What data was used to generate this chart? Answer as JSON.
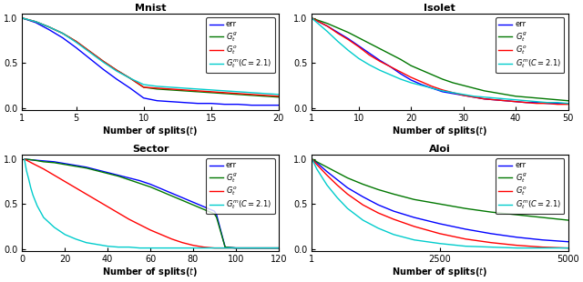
{
  "panels": [
    {
      "title": "Mnist",
      "xlabel": "Number of splits($t$)",
      "xmin": 1,
      "xmax": 20,
      "xticks": [
        1,
        5,
        10,
        15,
        20
      ],
      "curves": {
        "err": {
          "color": "#0000ff",
          "x": [
            1,
            2,
            3,
            4,
            5,
            6,
            7,
            8,
            9,
            10,
            11,
            12,
            13,
            14,
            15,
            16,
            17,
            18,
            19,
            20
          ],
          "y": [
            1.0,
            0.95,
            0.87,
            0.78,
            0.67,
            0.55,
            0.43,
            0.32,
            0.22,
            0.11,
            0.08,
            0.07,
            0.06,
            0.05,
            0.05,
            0.04,
            0.04,
            0.03,
            0.03,
            0.03
          ]
        },
        "Gs": {
          "color": "#007700",
          "x": [
            1,
            2,
            3,
            4,
            5,
            6,
            7,
            8,
            9,
            10,
            11,
            12,
            13,
            14,
            15,
            16,
            17,
            18,
            19,
            20
          ],
          "y": [
            1.0,
            0.96,
            0.9,
            0.83,
            0.74,
            0.63,
            0.52,
            0.42,
            0.33,
            0.23,
            0.21,
            0.2,
            0.19,
            0.18,
            0.17,
            0.16,
            0.15,
            0.14,
            0.13,
            0.12
          ]
        },
        "Go": {
          "color": "#ff0000",
          "x": [
            1,
            2,
            3,
            4,
            5,
            6,
            7,
            8,
            9,
            10,
            11,
            12,
            13,
            14,
            15,
            16,
            17,
            18,
            19,
            20
          ],
          "y": [
            1.0,
            0.96,
            0.9,
            0.83,
            0.74,
            0.63,
            0.52,
            0.42,
            0.33,
            0.23,
            0.22,
            0.21,
            0.2,
            0.19,
            0.18,
            0.17,
            0.16,
            0.15,
            0.14,
            0.13
          ]
        },
        "Gm": {
          "color": "#00cccc",
          "x": [
            1,
            2,
            3,
            4,
            5,
            6,
            7,
            8,
            9,
            10,
            11,
            12,
            13,
            14,
            15,
            16,
            17,
            18,
            19,
            20
          ],
          "y": [
            1.0,
            0.96,
            0.9,
            0.83,
            0.73,
            0.62,
            0.51,
            0.41,
            0.33,
            0.26,
            0.24,
            0.23,
            0.22,
            0.21,
            0.2,
            0.19,
            0.18,
            0.17,
            0.16,
            0.15
          ]
        }
      }
    },
    {
      "title": "Isolet",
      "xlabel": "Number of splits($t$)",
      "xmin": 1,
      "xmax": 50,
      "xticks": [
        1,
        10,
        20,
        30,
        40,
        50
      ],
      "curves": {
        "err": {
          "color": "#0000ff",
          "x": [
            1,
            2,
            4,
            6,
            8,
            10,
            12,
            14,
            16,
            18,
            20,
            22,
            24,
            26,
            28,
            30,
            32,
            34,
            36,
            38,
            40,
            42,
            44,
            46,
            48,
            50
          ],
          "y": [
            1.0,
            0.97,
            0.91,
            0.84,
            0.77,
            0.69,
            0.61,
            0.53,
            0.46,
            0.38,
            0.31,
            0.26,
            0.22,
            0.18,
            0.16,
            0.14,
            0.12,
            0.1,
            0.09,
            0.08,
            0.07,
            0.06,
            0.06,
            0.05,
            0.05,
            0.05
          ]
        },
        "Gs": {
          "color": "#007700",
          "x": [
            1,
            2,
            4,
            6,
            8,
            10,
            12,
            14,
            16,
            18,
            20,
            22,
            24,
            26,
            28,
            30,
            32,
            34,
            36,
            38,
            40,
            42,
            44,
            46,
            48,
            50
          ],
          "y": [
            1.0,
            0.98,
            0.94,
            0.89,
            0.84,
            0.78,
            0.72,
            0.66,
            0.6,
            0.54,
            0.47,
            0.42,
            0.37,
            0.32,
            0.28,
            0.25,
            0.22,
            0.19,
            0.17,
            0.15,
            0.13,
            0.12,
            0.11,
            0.1,
            0.09,
            0.08
          ]
        },
        "Go": {
          "color": "#ff0000",
          "x": [
            1,
            2,
            4,
            6,
            8,
            10,
            12,
            14,
            16,
            18,
            20,
            22,
            24,
            26,
            28,
            30,
            32,
            34,
            36,
            38,
            40,
            42,
            44,
            46,
            48,
            50
          ],
          "y": [
            1.0,
            0.97,
            0.91,
            0.83,
            0.76,
            0.68,
            0.59,
            0.52,
            0.46,
            0.4,
            0.34,
            0.29,
            0.24,
            0.2,
            0.17,
            0.14,
            0.12,
            0.1,
            0.09,
            0.08,
            0.07,
            0.06,
            0.05,
            0.05,
            0.04,
            0.04
          ]
        },
        "Gm": {
          "color": "#00cccc",
          "x": [
            1,
            2,
            4,
            6,
            8,
            10,
            12,
            14,
            16,
            18,
            20,
            22,
            24,
            26,
            28,
            30,
            32,
            34,
            36,
            38,
            40,
            42,
            44,
            46,
            48,
            50
          ],
          "y": [
            1.0,
            0.95,
            0.85,
            0.74,
            0.64,
            0.55,
            0.48,
            0.42,
            0.37,
            0.32,
            0.28,
            0.25,
            0.22,
            0.19,
            0.17,
            0.15,
            0.13,
            0.12,
            0.11,
            0.1,
            0.09,
            0.08,
            0.07,
            0.06,
            0.06,
            0.05
          ]
        }
      }
    },
    {
      "title": "Sector",
      "xlabel": "Number of splits($t$)",
      "xmin": 0,
      "xmax": 120,
      "xticks": [
        0,
        20,
        40,
        60,
        80,
        100,
        120
      ],
      "curves": {
        "err": {
          "color": "#0000ff",
          "x": [
            1,
            5,
            10,
            15,
            20,
            25,
            30,
            35,
            40,
            45,
            50,
            55,
            60,
            65,
            70,
            75,
            80,
            85,
            90,
            91,
            95,
            100,
            105,
            110,
            115,
            120
          ],
          "y": [
            1.0,
            0.99,
            0.98,
            0.97,
            0.95,
            0.93,
            0.91,
            0.88,
            0.85,
            0.82,
            0.79,
            0.76,
            0.72,
            0.67,
            0.62,
            0.57,
            0.52,
            0.47,
            0.42,
            0.38,
            0.02,
            0.01,
            0.01,
            0.01,
            0.01,
            0.01
          ]
        },
        "Gs": {
          "color": "#007700",
          "x": [
            1,
            5,
            10,
            15,
            20,
            25,
            30,
            35,
            40,
            45,
            50,
            55,
            60,
            65,
            70,
            75,
            80,
            85,
            90,
            91,
            95,
            100,
            105,
            110,
            115,
            120
          ],
          "y": [
            1.0,
            0.99,
            0.97,
            0.96,
            0.94,
            0.92,
            0.9,
            0.87,
            0.84,
            0.81,
            0.77,
            0.73,
            0.69,
            0.64,
            0.59,
            0.54,
            0.49,
            0.44,
            0.39,
            0.35,
            0.02,
            0.01,
            0.01,
            0.01,
            0.01,
            0.01
          ]
        },
        "Go": {
          "color": "#ff0000",
          "x": [
            1,
            5,
            10,
            15,
            20,
            25,
            30,
            35,
            40,
            45,
            50,
            55,
            60,
            65,
            70,
            75,
            80,
            85,
            90,
            95,
            100,
            105,
            110,
            115,
            120
          ],
          "y": [
            1.0,
            0.95,
            0.89,
            0.82,
            0.75,
            0.68,
            0.61,
            0.54,
            0.47,
            0.4,
            0.33,
            0.27,
            0.21,
            0.16,
            0.11,
            0.07,
            0.04,
            0.02,
            0.01,
            0.01,
            0.01,
            0.01,
            0.01,
            0.01,
            0.01
          ]
        },
        "Gm": {
          "color": "#00cccc",
          "x": [
            1,
            2,
            3,
            4,
            5,
            7,
            10,
            15,
            20,
            25,
            30,
            35,
            40,
            45,
            50,
            55,
            60,
            65,
            70,
            75,
            80,
            85,
            90,
            95,
            100,
            105,
            110,
            115,
            120
          ],
          "y": [
            1.0,
            0.87,
            0.78,
            0.68,
            0.6,
            0.48,
            0.35,
            0.24,
            0.16,
            0.11,
            0.07,
            0.05,
            0.03,
            0.02,
            0.02,
            0.01,
            0.01,
            0.01,
            0.01,
            0.01,
            0.01,
            0.01,
            0.01,
            0.01,
            0.01,
            0.01,
            0.01,
            0.01,
            0.01
          ]
        }
      }
    },
    {
      "title": "Aloi",
      "xlabel": "Number of splits($t$)",
      "xmin": 1,
      "xmax": 5000,
      "xticks": [
        1,
        2500,
        5000
      ],
      "curves": {
        "err": {
          "color": "#0000ff",
          "x": [
            1,
            50,
            100,
            200,
            300,
            500,
            700,
            1000,
            1300,
            1600,
            2000,
            2500,
            3000,
            3500,
            4000,
            4500,
            5000
          ],
          "y": [
            1.0,
            0.98,
            0.96,
            0.91,
            0.86,
            0.77,
            0.68,
            0.58,
            0.49,
            0.42,
            0.35,
            0.28,
            0.22,
            0.17,
            0.13,
            0.1,
            0.08
          ]
        },
        "Gs": {
          "color": "#007700",
          "x": [
            1,
            50,
            100,
            200,
            300,
            500,
            700,
            1000,
            1300,
            1600,
            2000,
            2500,
            3000,
            3500,
            4000,
            4500,
            5000
          ],
          "y": [
            1.0,
            0.99,
            0.97,
            0.94,
            0.91,
            0.85,
            0.79,
            0.72,
            0.66,
            0.61,
            0.55,
            0.5,
            0.45,
            0.41,
            0.38,
            0.35,
            0.32
          ]
        },
        "Go": {
          "color": "#ff0000",
          "x": [
            1,
            50,
            100,
            200,
            300,
            500,
            700,
            1000,
            1300,
            1600,
            2000,
            2500,
            3000,
            3500,
            4000,
            4500,
            5000
          ],
          "y": [
            1.0,
            0.97,
            0.94,
            0.88,
            0.82,
            0.71,
            0.61,
            0.49,
            0.4,
            0.33,
            0.25,
            0.17,
            0.11,
            0.07,
            0.04,
            0.02,
            0.01
          ]
        },
        "Gm": {
          "color": "#00cccc",
          "x": [
            1,
            50,
            100,
            200,
            300,
            500,
            700,
            1000,
            1300,
            1600,
            2000,
            2500,
            3000,
            3500,
            4000,
            4500,
            5000
          ],
          "y": [
            1.0,
            0.95,
            0.89,
            0.8,
            0.71,
            0.57,
            0.45,
            0.32,
            0.23,
            0.16,
            0.1,
            0.06,
            0.03,
            0.02,
            0.01,
            0.01,
            0.01
          ]
        }
      }
    }
  ],
  "legend_labels": {
    "err": "err",
    "Gs": "$G_t^g$",
    "Go": "$G_t^o$",
    "Gm": "$G_t^m(C = 2.1)$"
  },
  "yticks": [
    0,
    0.5,
    1
  ],
  "ylim": [
    -0.02,
    1.05
  ]
}
